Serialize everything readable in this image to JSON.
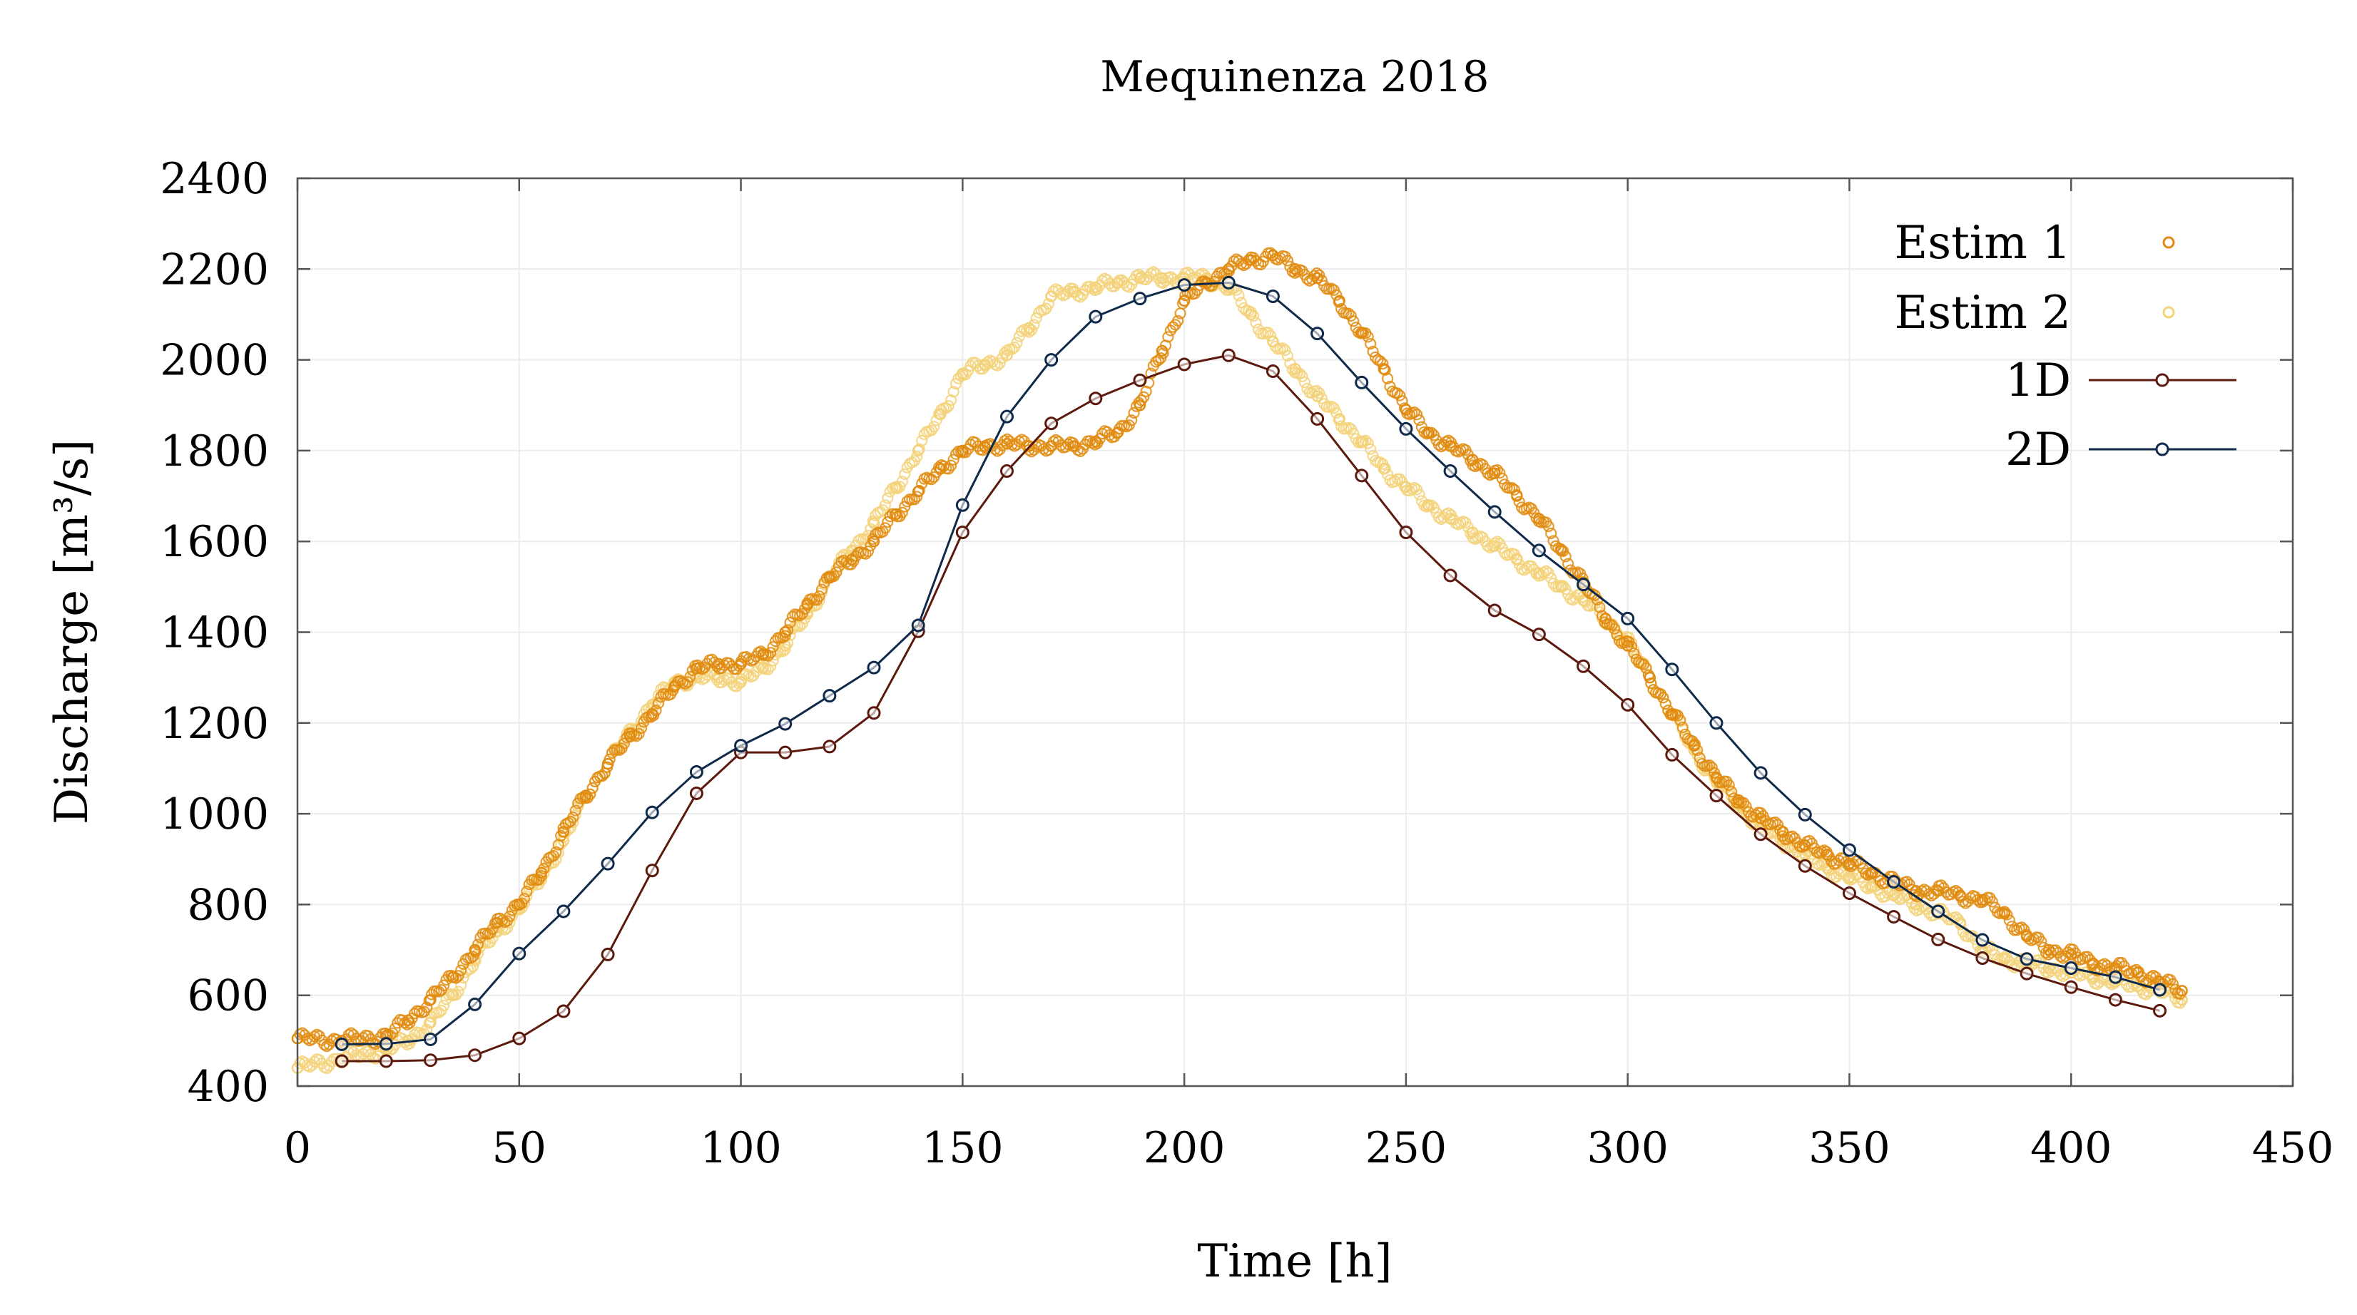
{
  "chart_data": {
    "type": "scatter",
    "title": "Mequinenza 2018",
    "xlabel": "Time [h]",
    "ylabel": "Discharge [m³/s]",
    "xlim": [
      0,
      450
    ],
    "ylim": [
      400,
      2400
    ],
    "xticks": [
      0,
      50,
      100,
      150,
      200,
      250,
      300,
      350,
      400,
      450
    ],
    "yticks": [
      400,
      600,
      800,
      1000,
      1200,
      1400,
      1600,
      1800,
      2000,
      2200,
      2400
    ],
    "grid": true,
    "legend_position": "top-right",
    "colors": {
      "estim1": "#e08c10",
      "estim2": "#f3d27a",
      "oneD": "#5c1a0e",
      "twoD": "#0f2a4a"
    },
    "series": [
      {
        "name": "Estim 1",
        "style": "markers",
        "x": [
          0,
          10,
          20,
          25,
          30,
          35,
          40,
          45,
          50,
          55,
          60,
          65,
          70,
          75,
          80,
          85,
          90,
          95,
          100,
          105,
          110,
          115,
          120,
          125,
          130,
          135,
          140,
          145,
          150,
          155,
          160,
          165,
          170,
          175,
          180,
          185,
          190,
          195,
          200,
          205,
          210,
          215,
          220,
          225,
          230,
          235,
          240,
          245,
          250,
          255,
          260,
          265,
          270,
          275,
          280,
          285,
          290,
          295,
          300,
          305,
          310,
          315,
          320,
          325,
          330,
          335,
          340,
          345,
          350,
          355,
          360,
          365,
          370,
          375,
          380,
          385,
          390,
          395,
          400,
          405,
          410,
          415,
          420,
          425
        ],
        "y": [
          505,
          500,
          510,
          545,
          590,
          640,
          700,
          760,
          800,
          870,
          960,
          1040,
          1110,
          1170,
          1220,
          1280,
          1320,
          1330,
          1330,
          1350,
          1400,
          1460,
          1520,
          1560,
          1600,
          1660,
          1710,
          1760,
          1800,
          1810,
          1815,
          1810,
          1810,
          1810,
          1820,
          1840,
          1900,
          2020,
          2130,
          2170,
          2200,
          2220,
          2230,
          2200,
          2180,
          2130,
          2060,
          1980,
          1890,
          1840,
          1810,
          1780,
          1750,
          1700,
          1650,
          1580,
          1510,
          1430,
          1370,
          1300,
          1220,
          1150,
          1080,
          1030,
          990,
          960,
          930,
          910,
          890,
          870,
          850,
          830,
          830,
          820,
          810,
          780,
          730,
          700,
          690,
          670,
          660,
          650,
          630,
          610
        ]
      },
      {
        "name": "Estim 2",
        "style": "markers",
        "x": [
          0,
          10,
          20,
          25,
          30,
          35,
          40,
          45,
          50,
          55,
          60,
          65,
          70,
          75,
          80,
          85,
          90,
          95,
          100,
          105,
          110,
          115,
          120,
          125,
          130,
          135,
          140,
          145,
          150,
          155,
          160,
          165,
          170,
          175,
          180,
          185,
          190,
          195,
          200,
          205,
          210,
          215,
          220,
          225,
          230,
          235,
          240,
          245,
          250,
          255,
          260,
          265,
          270,
          275,
          280,
          285,
          290,
          295,
          300,
          305,
          310,
          315,
          320,
          325,
          330,
          335,
          340,
          345,
          350,
          355,
          360,
          365,
          370,
          375,
          380,
          385,
          390,
          395,
          400,
          405,
          410,
          415,
          420,
          425
        ],
        "y": [
          440,
          460,
          480,
          500,
          540,
          600,
          680,
          740,
          790,
          860,
          940,
          1040,
          1110,
          1180,
          1240,
          1290,
          1300,
          1300,
          1290,
          1320,
          1370,
          1440,
          1520,
          1580,
          1640,
          1720,
          1800,
          1880,
          1970,
          1990,
          2010,
          2070,
          2140,
          2150,
          2160,
          2170,
          2180,
          2180,
          2180,
          2180,
          2160,
          2100,
          2040,
          1980,
          1920,
          1870,
          1820,
          1760,
          1720,
          1680,
          1650,
          1620,
          1590,
          1560,
          1530,
          1500,
          1470,
          1430,
          1380,
          1300,
          1220,
          1140,
          1070,
          1020,
          970,
          940,
          910,
          880,
          860,
          840,
          820,
          800,
          780,
          760,
          700,
          680,
          670,
          660,
          650,
          640,
          630,
          620,
          610,
          590
        ]
      },
      {
        "name": "1D",
        "style": "line-markers",
        "x": [
          10,
          20,
          30,
          40,
          50,
          60,
          70,
          80,
          90,
          100,
          110,
          120,
          130,
          140,
          150,
          160,
          170,
          180,
          190,
          200,
          210,
          220,
          230,
          240,
          250,
          260,
          270,
          280,
          290,
          300,
          310,
          320,
          330,
          340,
          350,
          360,
          370,
          380,
          390,
          400,
          410,
          420
        ],
        "y": [
          455,
          455,
          457,
          468,
          505,
          565,
          690,
          875,
          1045,
          1135,
          1135,
          1148,
          1222,
          1402,
          1620,
          1755,
          1860,
          1915,
          1955,
          1990,
          2010,
          1975,
          1870,
          1745,
          1620,
          1525,
          1448,
          1395,
          1325,
          1240,
          1130,
          1040,
          955,
          885,
          825,
          773,
          723,
          682,
          648,
          618,
          590,
          566
        ]
      },
      {
        "name": "2D",
        "style": "line-markers",
        "x": [
          10,
          20,
          30,
          40,
          50,
          60,
          70,
          80,
          90,
          100,
          110,
          120,
          130,
          140,
          150,
          160,
          170,
          180,
          190,
          200,
          210,
          220,
          230,
          240,
          250,
          260,
          270,
          280,
          290,
          300,
          310,
          320,
          330,
          340,
          350,
          360,
          370,
          380,
          390,
          400,
          410,
          420
        ],
        "y": [
          492,
          493,
          503,
          580,
          692,
          785,
          890,
          1003,
          1092,
          1150,
          1198,
          1260,
          1322,
          1415,
          1680,
          1875,
          2000,
          2095,
          2135,
          2165,
          2170,
          2140,
          2058,
          1950,
          1848,
          1755,
          1665,
          1580,
          1505,
          1430,
          1318,
          1200,
          1090,
          998,
          920,
          850,
          785,
          722,
          680,
          660,
          640,
          612
        ]
      }
    ]
  }
}
